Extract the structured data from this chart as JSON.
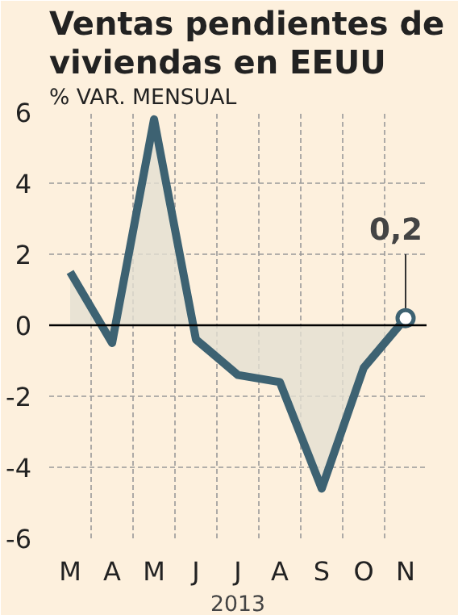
{
  "chart_data": {
    "type": "area",
    "title": "Ventas pendientes de viviendas en EEUU",
    "ylabel": "% VAR. MENSUAL",
    "xlabel": "2013",
    "categories": [
      "M",
      "A",
      "M",
      "J",
      "J",
      "A",
      "S",
      "O",
      "N"
    ],
    "series": [
      {
        "color": "#3d6272",
        "values": [
          1.5,
          -0.5,
          5.8,
          -0.4,
          -1.4,
          -1.6,
          -4.6,
          -1.2,
          0.2
        ]
      }
    ],
    "ylim": [
      -6,
      6
    ],
    "yticks": [
      -6,
      -4,
      -2,
      0,
      2,
      4,
      6
    ],
    "grid": true,
    "line_style": "solid",
    "annotations": [
      {
        "text": "0,2",
        "x": "N",
        "y": 0.2
      }
    ]
  }
}
